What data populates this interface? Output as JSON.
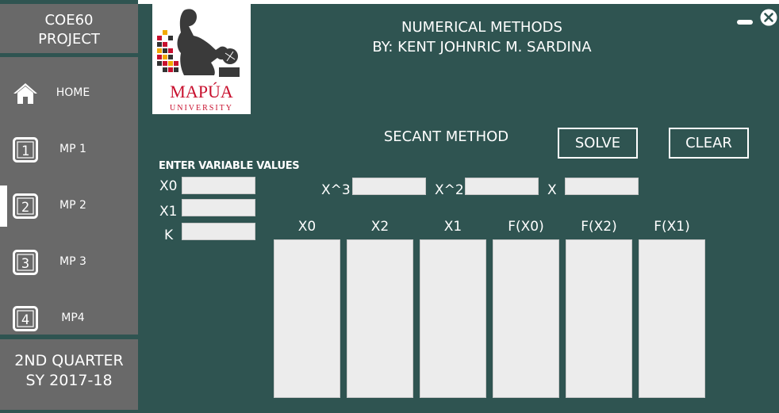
{
  "sidebar": {
    "header_line1": "COE60",
    "header_line2": "PROJECT",
    "items": [
      {
        "label": "HOME",
        "icon": "home-icon"
      },
      {
        "label": "MP 1",
        "icon_text": "1"
      },
      {
        "label": "MP 2",
        "icon_text": "2"
      },
      {
        "label": "MP 3",
        "icon_text": "3"
      },
      {
        "label": "MP4",
        "icon_text": "4"
      }
    ],
    "active_item": "MP 2",
    "footer_line1": "2ND QUARTER",
    "footer_line2": "SY 2017-18"
  },
  "header": {
    "title_line1": "NUMERICAL METHODS",
    "title_line2": "BY: KENT JOHNRIC M. SARDINA",
    "logo_text": "MAPÚA",
    "logo_subtext": "UNIVERSITY"
  },
  "method": {
    "title": "SECANT METHOD",
    "solve_label": "SOLVE",
    "clear_label": "CLEAR"
  },
  "inputs": {
    "heading": "ENTER VARIABLE VALUES",
    "x0_label": "X0",
    "x1_label": "X1",
    "k_label": "K",
    "x3_label": "X^3",
    "x2_label": "X^2",
    "x_label": "X",
    "x0_value": "",
    "x1_value": "",
    "k_value": "",
    "x3_value": "",
    "x2_value": "",
    "x_value": ""
  },
  "table": {
    "columns": [
      "X0",
      "X2",
      "X1",
      "F(X0)",
      "F(X2)",
      "F(X1)"
    ]
  },
  "colors": {
    "background": "#2f5451",
    "sidebar": "#696969",
    "field": "#ececec",
    "text": "#ffffff"
  }
}
